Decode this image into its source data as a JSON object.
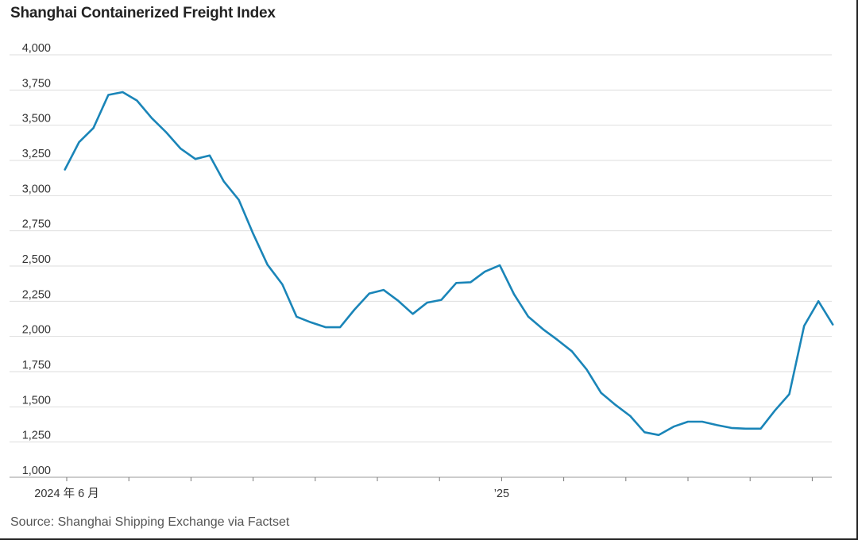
{
  "chart_data": {
    "type": "line",
    "title": "Shanghai Containerized Freight Index",
    "source": "Source: Shanghai Shipping Exchange via Factset",
    "ylim": [
      1000,
      4000
    ],
    "yticks": [
      1000,
      1250,
      1500,
      1750,
      2000,
      2250,
      2500,
      2750,
      3000,
      3250,
      3500,
      3750,
      4000
    ],
    "ytick_labels": [
      "1,000",
      "1,250",
      "1,500",
      "1,750",
      "2,000",
      "2,250",
      "2,500",
      "2,750",
      "3,000",
      "3,250",
      "3,500",
      "3,750",
      "4,000"
    ],
    "x_tick_count": 13,
    "x_labels": [
      {
        "tick": 0,
        "text": "2024 年 6 月"
      },
      {
        "tick": 7,
        "text": "’25"
      }
    ],
    "x_range_ticks": [
      -0.03,
      12.35
    ],
    "grid": true,
    "color": "#1a85b8",
    "series": [
      {
        "x": [
          -0.03,
          0.2,
          0.43,
          0.67,
          0.9,
          1.13,
          1.37,
          1.6,
          1.83,
          2.07,
          2.3,
          2.53,
          2.77,
          3.0,
          3.23,
          3.47,
          3.7,
          3.93,
          4.17,
          4.4,
          4.63,
          4.87,
          5.1,
          5.33,
          5.57,
          5.8,
          6.03,
          6.27,
          6.5,
          6.73,
          6.97,
          7.2,
          7.43,
          7.67,
          7.9,
          8.13,
          8.37,
          8.6,
          8.83,
          9.07,
          9.3,
          9.53,
          9.77,
          10.0,
          10.23,
          10.47,
          10.7,
          10.93,
          11.17,
          11.4,
          11.63,
          11.87,
          12.1,
          12.33
        ],
        "values": [
          3185,
          3380,
          3480,
          3715,
          3735,
          3675,
          3550,
          3450,
          3335,
          3260,
          3285,
          3100,
          2970,
          2730,
          2510,
          2370,
          2140,
          2100,
          2065,
          2065,
          2190,
          2305,
          2330,
          2255,
          2160,
          2240,
          2260,
          2380,
          2385,
          2460,
          2505,
          2300,
          2140,
          2050,
          1975,
          1895,
          1765,
          1600,
          1515,
          1435,
          1320,
          1300,
          1360,
          1395,
          1395,
          1370,
          1350,
          1345,
          1345,
          1475,
          1590,
          2075,
          2250,
          2085
        ]
      }
    ]
  }
}
